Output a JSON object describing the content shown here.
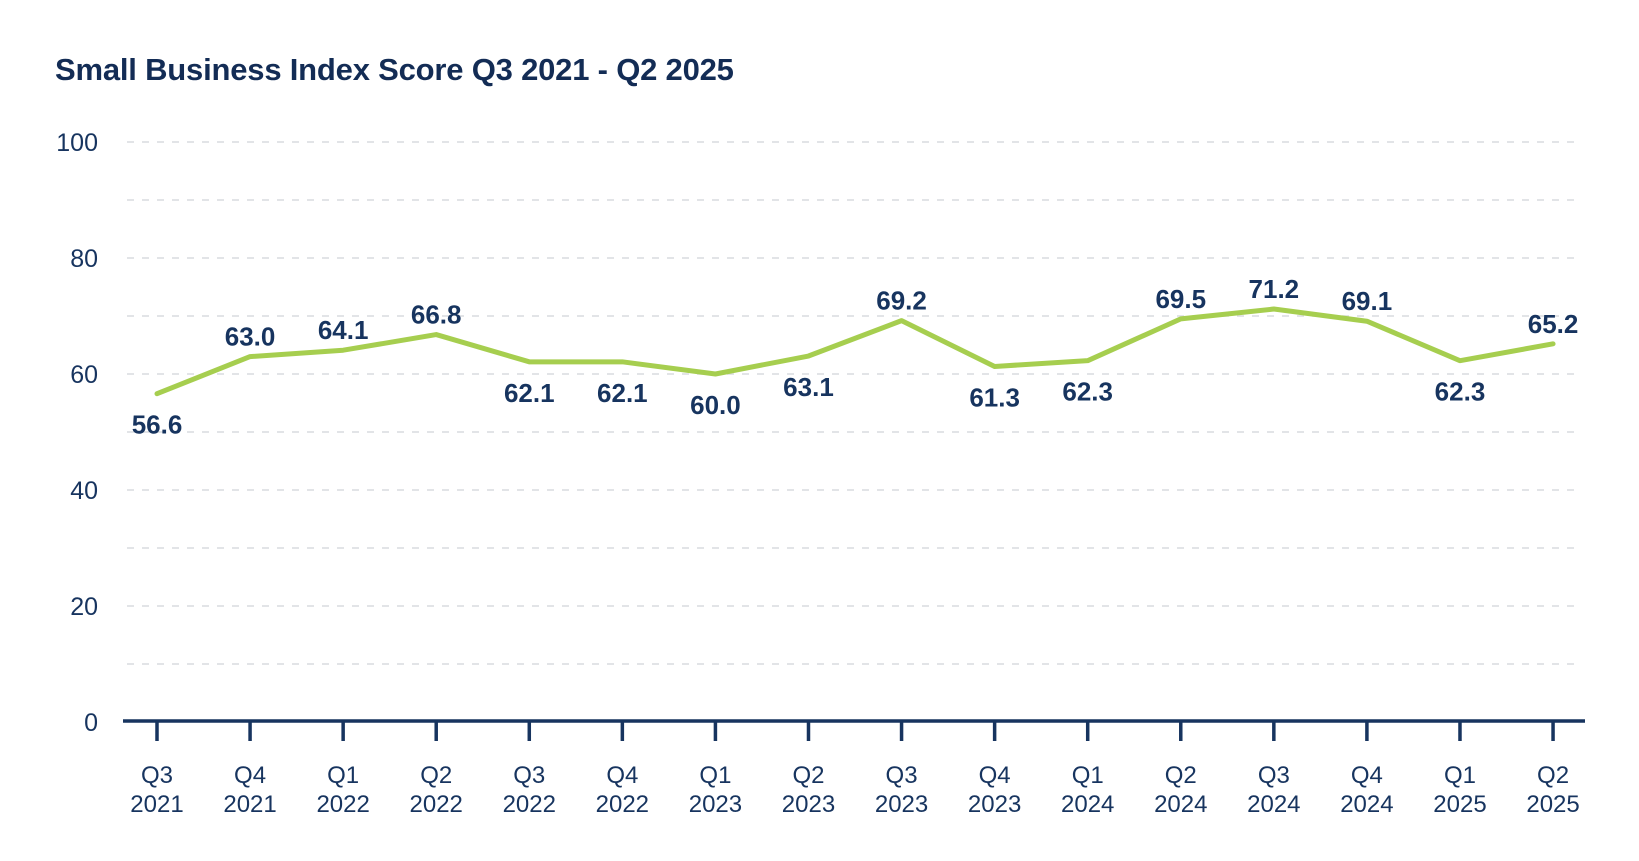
{
  "chart_data": {
    "type": "line",
    "title": "Small Business Index Score Q3 2021 - Q2 2025",
    "categories": [
      "Q3 2021",
      "Q4 2021",
      "Q1 2022",
      "Q2 2022",
      "Q3 2022",
      "Q4 2022",
      "Q1 2023",
      "Q2 2023",
      "Q3 2023",
      "Q4 2023",
      "Q1 2024",
      "Q2 2024",
      "Q3 2024",
      "Q4 2024",
      "Q1 2025",
      "Q2 2025"
    ],
    "values": [
      56.6,
      63.0,
      64.1,
      66.8,
      62.1,
      62.1,
      60.0,
      63.1,
      69.2,
      61.3,
      62.3,
      69.5,
      71.2,
      69.1,
      62.3,
      65.2
    ],
    "data_label_positions": [
      "below",
      "above",
      "above",
      "above",
      "below",
      "below",
      "below",
      "below",
      "above",
      "below",
      "below",
      "above",
      "above",
      "above",
      "below",
      "above"
    ],
    "data_label_decimals": 1,
    "xlabel": "",
    "ylabel": "",
    "ylim": [
      0,
      100
    ],
    "yticks_labeled": [
      0,
      20,
      40,
      60,
      80,
      100
    ],
    "ytick_minor_step": 10,
    "grid": "horizontal-dashed",
    "legend": "none",
    "colors": {
      "line": "#A6CE4F",
      "text": "#17345F",
      "title": "#132C55",
      "grid": "#D9DCDF"
    }
  }
}
